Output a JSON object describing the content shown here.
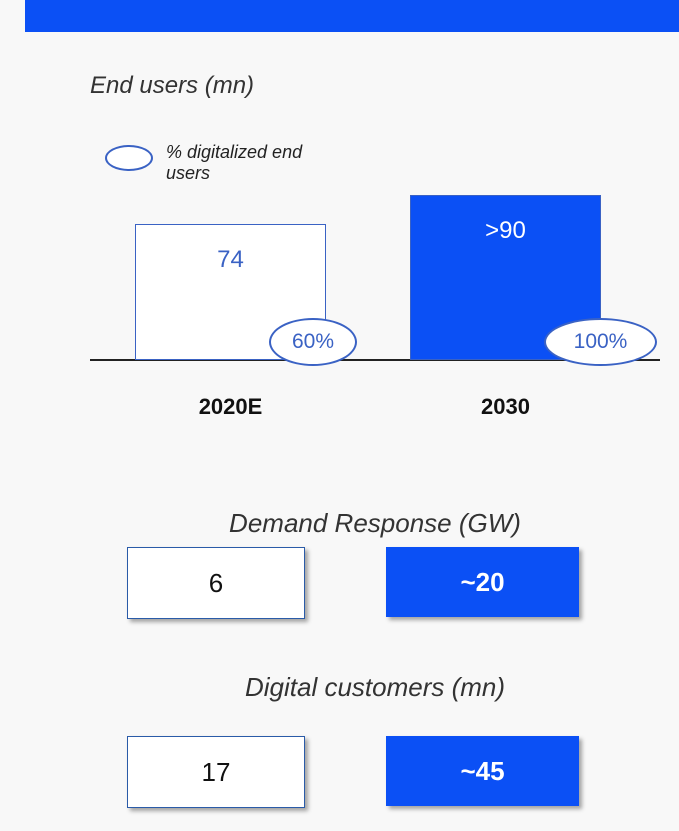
{
  "chart_data": {
    "type": "bar",
    "title": "End users (mn)",
    "legend_label": "% digitalized end users",
    "categories": [
      "2020E",
      "2030"
    ],
    "values": [
      74,
      90
    ],
    "value_labels": [
      "74",
      ">90"
    ],
    "digitalized": [
      60,
      100
    ],
    "digitalized_labels": [
      "60%",
      "100%"
    ],
    "colors": [
      "#ffffff",
      "#0b50f5"
    ]
  },
  "demand_response": {
    "title": "Demand Response (GW)",
    "values": [
      "6",
      "~20"
    ]
  },
  "digital_customers": {
    "title": "Digital customers (mn)",
    "values": [
      "17",
      "~45"
    ]
  }
}
